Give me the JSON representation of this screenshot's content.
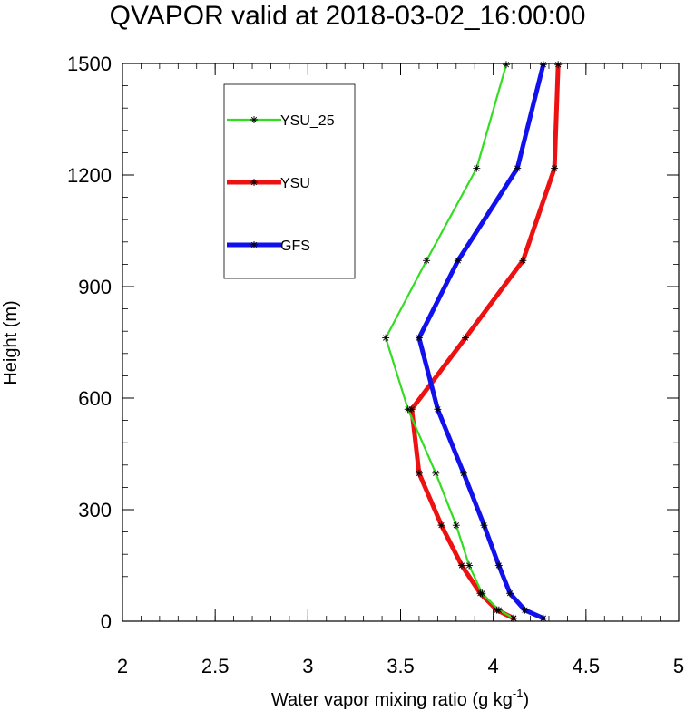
{
  "chart_data": {
    "type": "line",
    "title": "QVAPOR valid at 2018-03-02_16:00:00",
    "xlabel_main": "Water vapor mixing ratio (g kg",
    "xlabel_sup": "-1",
    "xlabel_end": ")",
    "ylabel": "Height (m)",
    "xlim": [
      2,
      5
    ],
    "ylim": [
      0,
      1500
    ],
    "x_ticks": [
      "2",
      "2.5",
      "3",
      "3.5",
      "4",
      "4.5",
      "5"
    ],
    "x_tick_values": [
      2,
      2.5,
      3,
      3.5,
      4,
      4.5,
      5
    ],
    "y_ticks": [
      "0",
      "300",
      "600",
      "900",
      "1200",
      "1500"
    ],
    "y_tick_values": [
      0,
      300,
      600,
      900,
      1200,
      1500
    ],
    "legend_position": "top-left",
    "series": [
      {
        "name": "YSU_25",
        "color": "#33dd22",
        "width": "thin",
        "x": [
          4.11,
          4.03,
          3.94,
          3.87,
          3.8,
          3.69,
          3.54,
          3.42,
          3.64,
          3.91,
          4.07
        ],
        "y": [
          8,
          30,
          75,
          150,
          258,
          398,
          570,
          762,
          970,
          1218,
          1497
        ]
      },
      {
        "name": "YSU",
        "color": "#ee1111",
        "width": "thick",
        "x": [
          4.11,
          4.02,
          3.93,
          3.83,
          3.72,
          3.6,
          3.56,
          3.85,
          4.16,
          4.33,
          4.35
        ],
        "y": [
          8,
          30,
          75,
          150,
          258,
          398,
          570,
          762,
          970,
          1218,
          1497
        ]
      },
      {
        "name": "GFS",
        "color": "#1111ee",
        "width": "thick",
        "x": [
          4.27,
          4.17,
          4.09,
          4.03,
          3.95,
          3.84,
          3.7,
          3.6,
          3.81,
          4.13,
          4.27
        ],
        "y": [
          8,
          30,
          75,
          150,
          258,
          398,
          570,
          762,
          970,
          1218,
          1497
        ]
      }
    ]
  }
}
